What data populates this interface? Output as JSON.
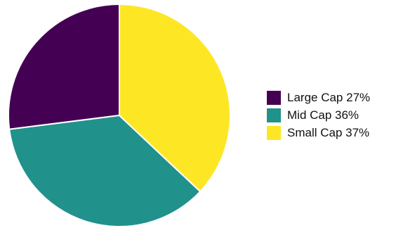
{
  "chart_data": {
    "type": "pie",
    "title": "",
    "start_angle_deg": 90,
    "direction": "counterclockwise",
    "legend_position": "right",
    "slices": [
      {
        "label": "Large Cap 27%",
        "category": "Large Cap",
        "value": 27,
        "color": "#440154"
      },
      {
        "label": "Mid Cap 36%",
        "category": "Mid Cap",
        "value": 36,
        "color": "#21918c"
      },
      {
        "label": "Small Cap 37%",
        "category": "Small Cap",
        "value": 37,
        "color": "#fde725"
      }
    ]
  }
}
